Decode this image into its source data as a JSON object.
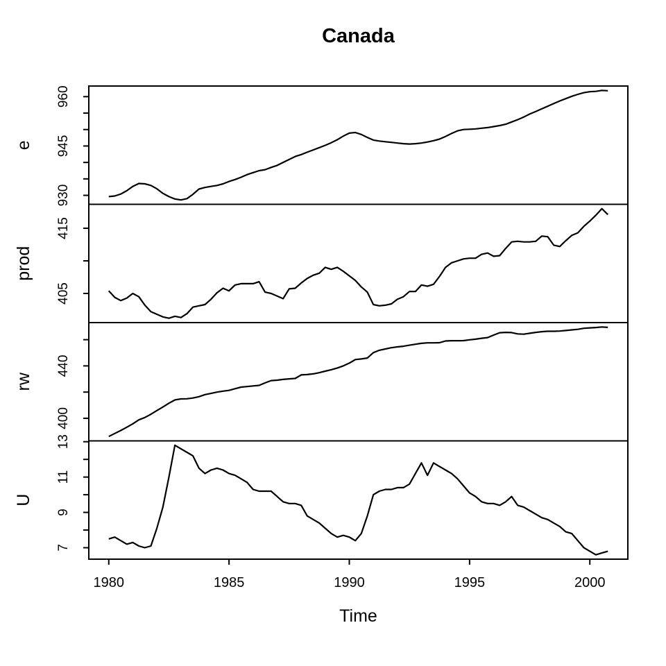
{
  "title": "Canada",
  "xlabel": "Time",
  "colors": {
    "line": "#000000",
    "background": "#ffffff",
    "text": "#000000"
  },
  "chart_data": {
    "type": "line",
    "layout": "four stacked panels sharing one x axis, no grid, no legend, black line on white",
    "title": "Canada",
    "xlabel": "Time",
    "xlim": [
      1980,
      2000.75
    ],
    "x_ticks": [
      1980,
      1985,
      1990,
      1995,
      2000
    ],
    "x": [
      1980,
      1980.25,
      1980.5,
      1980.75,
      1981,
      1981.25,
      1981.5,
      1981.75,
      1982,
      1982.25,
      1982.5,
      1982.75,
      1983,
      1983.25,
      1983.5,
      1983.75,
      1984,
      1984.25,
      1984.5,
      1984.75,
      1985,
      1985.25,
      1985.5,
      1985.75,
      1986,
      1986.25,
      1986.5,
      1986.75,
      1987,
      1987.25,
      1987.5,
      1987.75,
      1988,
      1988.25,
      1988.5,
      1988.75,
      1989,
      1989.25,
      1989.5,
      1989.75,
      1990,
      1990.25,
      1990.5,
      1990.75,
      1991,
      1991.25,
      1991.5,
      1991.75,
      1992,
      1992.25,
      1992.5,
      1992.75,
      1993,
      1993.25,
      1993.5,
      1993.75,
      1994,
      1994.25,
      1994.5,
      1994.75,
      1995,
      1995.25,
      1995.5,
      1995.75,
      1996,
      1996.25,
      1996.5,
      1996.75,
      1997,
      1997.25,
      1997.5,
      1997.75,
      1998,
      1998.25,
      1998.5,
      1998.75,
      1999,
      1999.25,
      1999.5,
      1999.75,
      2000,
      2000.25,
      2000.5,
      2000.75
    ],
    "panels": [
      {
        "name": "e",
        "yticks": [
          930,
          935,
          940,
          945,
          950,
          955,
          960
        ],
        "ytick_labels": [
          930,
          945,
          960
        ],
        "values": [
          929.6,
          929.8,
          930.4,
          931.4,
          932.7,
          933.6,
          933.5,
          933.0,
          932.0,
          930.6,
          929.6,
          928.9,
          928.6,
          929.0,
          930.3,
          931.9,
          932.4,
          932.7,
          933.0,
          933.5,
          934.2,
          934.8,
          935.5,
          936.3,
          936.9,
          937.5,
          937.8,
          938.5,
          939.1,
          940.0,
          940.9,
          941.8,
          942.4,
          943.1,
          943.8,
          944.5,
          945.2,
          946.0,
          946.9,
          948.0,
          948.9,
          949.1,
          948.5,
          947.6,
          946.8,
          946.5,
          946.3,
          946.1,
          945.9,
          945.7,
          945.6,
          945.7,
          945.9,
          946.2,
          946.6,
          947.1,
          947.9,
          948.8,
          949.6,
          950.0,
          950.1,
          950.2,
          950.4,
          950.6,
          950.9,
          951.2,
          951.6,
          952.3,
          953.0,
          953.8,
          954.7,
          955.5,
          956.3,
          957.1,
          957.9,
          958.7,
          959.4,
          960.1,
          960.7,
          961.2,
          961.5,
          961.6,
          961.9,
          961.8
        ]
      },
      {
        "name": "prod",
        "yticks": [
          405,
          410,
          415
        ],
        "ytick_labels": [
          405,
          415
        ],
        "values": [
          405.4,
          404.4,
          403.9,
          404.3,
          405.0,
          404.5,
          403.2,
          402.2,
          401.8,
          401.4,
          401.2,
          401.5,
          401.3,
          401.9,
          402.9,
          403.1,
          403.3,
          404.1,
          405.1,
          405.8,
          405.4,
          406.3,
          406.5,
          406.5,
          406.5,
          406.8,
          405.2,
          405.0,
          404.6,
          404.2,
          405.7,
          405.8,
          406.6,
          407.3,
          407.8,
          408.1,
          409.0,
          408.7,
          409.0,
          408.4,
          407.7,
          407.0,
          406.0,
          405.2,
          403.3,
          403.1,
          403.2,
          403.4,
          404.1,
          404.5,
          405.3,
          405.3,
          406.3,
          406.1,
          406.4,
          407.6,
          409.0,
          409.7,
          410.0,
          410.3,
          410.4,
          410.4,
          411.0,
          411.2,
          410.7,
          410.8,
          411.9,
          412.9,
          413.0,
          412.9,
          412.9,
          413.0,
          413.8,
          413.7,
          412.4,
          412.2,
          413.1,
          413.9,
          414.3,
          415.3,
          416.1,
          417.0,
          418.0,
          417.1
        ]
      },
      {
        "name": "rw",
        "yticks": [
          400,
          420,
          440,
          460
        ],
        "ytick_labels": [
          400,
          440
        ],
        "values": [
          386.1,
          388.4,
          390.7,
          393.2,
          395.8,
          398.8,
          400.6,
          403.1,
          405.9,
          408.6,
          411.5,
          414.0,
          414.8,
          414.9,
          415.5,
          416.5,
          418.1,
          419.0,
          420.0,
          420.7,
          421.3,
          422.6,
          423.8,
          424.2,
          424.7,
          425.1,
          427.0,
          428.8,
          429.1,
          429.7,
          430.1,
          430.4,
          433.1,
          433.4,
          433.9,
          434.8,
          436.0,
          437.1,
          438.4,
          440.0,
          442.1,
          444.8,
          445.3,
          446.0,
          450.1,
          451.9,
          452.9,
          453.9,
          454.5,
          455.0,
          455.8,
          456.5,
          457.2,
          457.6,
          457.6,
          457.7,
          459.0,
          459.2,
          459.2,
          459.3,
          459.9,
          460.4,
          461.1,
          461.6,
          463.5,
          465.3,
          465.6,
          465.4,
          464.4,
          464.2,
          464.9,
          465.6,
          466.1,
          466.4,
          466.4,
          466.6,
          467.0,
          467.5,
          467.9,
          468.7,
          469.0,
          469.3,
          469.7,
          469.4
        ]
      },
      {
        "name": "U",
        "yticks": [
          7,
          8,
          9,
          10,
          11,
          12,
          13
        ],
        "ytick_labels": [
          7,
          9,
          11,
          13
        ],
        "values": [
          7.5,
          7.6,
          7.4,
          7.2,
          7.3,
          7.1,
          7.0,
          7.1,
          8.1,
          9.3,
          11.0,
          12.8,
          12.6,
          12.4,
          12.2,
          11.5,
          11.2,
          11.4,
          11.5,
          11.4,
          11.2,
          11.1,
          10.9,
          10.7,
          10.3,
          10.2,
          10.2,
          10.2,
          9.9,
          9.6,
          9.5,
          9.5,
          9.4,
          8.8,
          8.6,
          8.4,
          8.1,
          7.8,
          7.6,
          7.7,
          7.6,
          7.4,
          7.8,
          8.8,
          10.0,
          10.2,
          10.3,
          10.3,
          10.4,
          10.4,
          10.6,
          11.2,
          11.8,
          11.1,
          11.8,
          11.6,
          11.4,
          11.2,
          10.9,
          10.5,
          10.1,
          9.9,
          9.6,
          9.5,
          9.5,
          9.4,
          9.6,
          9.9,
          9.4,
          9.3,
          9.1,
          8.9,
          8.7,
          8.6,
          8.4,
          8.2,
          7.9,
          7.8,
          7.4,
          7.0,
          6.8,
          6.6,
          6.7,
          6.8
        ]
      }
    ]
  }
}
